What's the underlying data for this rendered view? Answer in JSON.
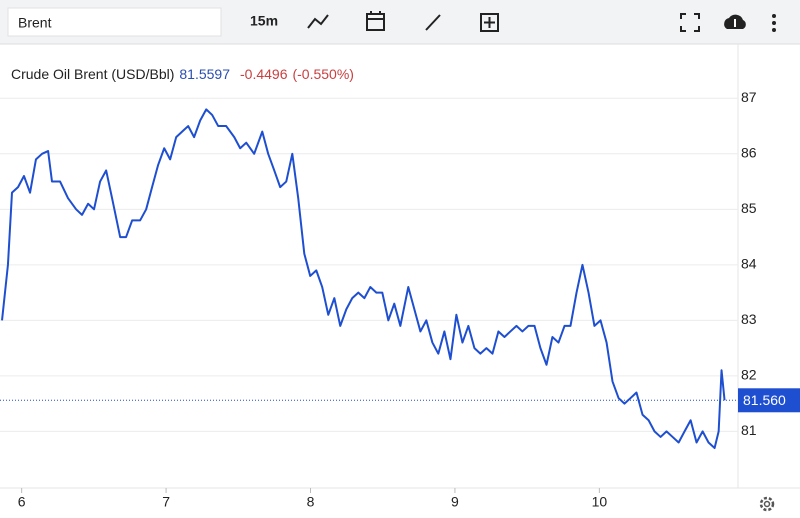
{
  "toolbar": {
    "symbol": "Brent",
    "interval": "15m"
  },
  "chart_data": {
    "type": "line",
    "title": "Crude Oil Brent (USD/Bbl)",
    "quote": {
      "last": "81.5597",
      "change": "-0.4496",
      "change_pct": "(-0.550%)"
    },
    "x": [
      5.864,
      5.905,
      5.933,
      5.975,
      6.016,
      6.058,
      6.099,
      6.141,
      6.183,
      6.21,
      6.266,
      6.321,
      6.377,
      6.418,
      6.46,
      6.501,
      6.543,
      6.585,
      6.626,
      6.682,
      6.723,
      6.765,
      6.82,
      6.862,
      6.903,
      6.945,
      6.987,
      7.028,
      7.07,
      7.111,
      7.153,
      7.194,
      7.236,
      7.278,
      7.319,
      7.361,
      7.416,
      7.472,
      7.513,
      7.555,
      7.61,
      7.666,
      7.707,
      7.749,
      7.79,
      7.832,
      7.874,
      7.915,
      7.957,
      7.998,
      8.04,
      8.081,
      8.123,
      8.165,
      8.206,
      8.248,
      8.289,
      8.331,
      8.373,
      8.414,
      8.456,
      8.497,
      8.539,
      8.58,
      8.622,
      8.677,
      8.719,
      8.761,
      8.802,
      8.844,
      8.885,
      8.927,
      8.969,
      9.01,
      9.052,
      9.093,
      9.135,
      9.176,
      9.218,
      9.26,
      9.301,
      9.343,
      9.384,
      9.426,
      9.467,
      9.509,
      9.551,
      9.592,
      9.634,
      9.675,
      9.717,
      9.759,
      9.8,
      9.842,
      9.883,
      9.925,
      9.966,
      10.008,
      10.05,
      10.091,
      10.133,
      10.174,
      10.216,
      10.257,
      10.299,
      10.341,
      10.382,
      10.424,
      10.465,
      10.507,
      10.549,
      10.59,
      10.632,
      10.673,
      10.715,
      10.756,
      10.798,
      10.826,
      10.846,
      10.867
    ],
    "series": [
      {
        "name": "Crude Oil Brent",
        "color": "#1f4fd1",
        "values": [
          83.0,
          84.0,
          85.3,
          85.4,
          85.6,
          85.3,
          85.9,
          86.0,
          86.05,
          85.5,
          85.5,
          85.2,
          85.0,
          84.9,
          85.1,
          85.0,
          85.5,
          85.7,
          85.2,
          84.5,
          84.5,
          84.8,
          84.8,
          85.0,
          85.4,
          85.8,
          86.1,
          85.9,
          86.3,
          86.4,
          86.5,
          86.3,
          86.6,
          86.8,
          86.7,
          86.5,
          86.5,
          86.3,
          86.1,
          86.2,
          86.0,
          86.4,
          86.0,
          85.7,
          85.4,
          85.5,
          86.0,
          85.2,
          84.2,
          83.8,
          83.9,
          83.6,
          83.1,
          83.4,
          82.9,
          83.2,
          83.4,
          83.5,
          83.4,
          83.6,
          83.5,
          83.5,
          83.0,
          83.3,
          82.9,
          83.6,
          83.2,
          82.8,
          83.0,
          82.6,
          82.4,
          82.8,
          82.3,
          83.1,
          82.6,
          82.9,
          82.5,
          82.4,
          82.5,
          82.4,
          82.8,
          82.7,
          82.8,
          82.9,
          82.8,
          82.9,
          82.9,
          82.5,
          82.2,
          82.7,
          82.6,
          82.9,
          82.9,
          83.5,
          84.0,
          83.5,
          82.9,
          83.0,
          82.6,
          81.9,
          81.6,
          81.5,
          81.6,
          81.7,
          81.3,
          81.2,
          81.0,
          80.9,
          81.0,
          80.9,
          80.8,
          81.0,
          81.2,
          80.8,
          81.0,
          80.8,
          80.7,
          81.0,
          82.1,
          81.56
        ]
      }
    ],
    "last_price": {
      "value": 81.56,
      "label": "81.560"
    },
    "xlim": [
      5.85,
      10.96
    ],
    "xticks": [
      6,
      7,
      8,
      9,
      10
    ],
    "ylim": [
      79.98,
      87.96
    ],
    "yticks": [
      81,
      82,
      83,
      84,
      85,
      86,
      87
    ],
    "grid": true
  }
}
